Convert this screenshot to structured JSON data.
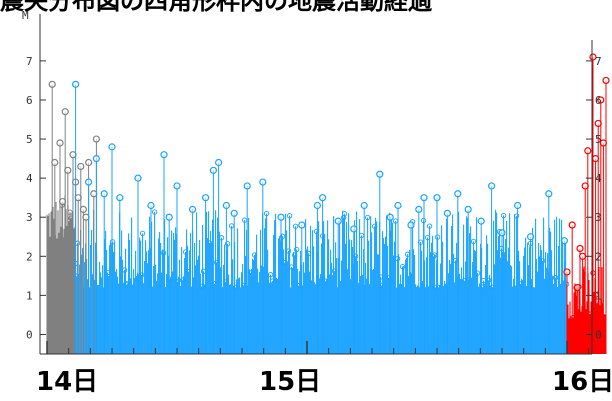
{
  "chart_data": {
    "type": "scatter",
    "title": "震央分布図の四角形枠内の地震活動経過",
    "ylabel": "M",
    "ylim": [
      -0.5,
      8.2
    ],
    "yticks": [
      0,
      1,
      2,
      3,
      4,
      5,
      6,
      7
    ],
    "xlim": [
      0,
      2.15
    ],
    "xlabels": [
      "14日",
      "15日",
      "16日"
    ],
    "xlabel_positions": [
      0,
      1,
      2
    ],
    "colors": {
      "before": "#808080",
      "main": "#1aa3ff",
      "after": "#ff0000"
    },
    "series": [
      {
        "color_key": "before",
        "x": [
          0.02,
          0.03,
          0.05,
          0.06,
          0.07,
          0.08,
          0.1,
          0.11,
          0.12,
          0.13,
          0.14,
          0.15,
          0.16,
          0.18,
          0.19
        ],
        "y": [
          6.4,
          4.4,
          4.9,
          3.4,
          5.7,
          4.2,
          4.6,
          3.9,
          3.5,
          4.3,
          3.2,
          3.0,
          4.4,
          3.6,
          5.0
        ]
      },
      {
        "color_key": "main",
        "x": [
          0.11,
          0.16,
          0.19,
          0.22,
          0.25,
          0.28,
          0.35,
          0.4,
          0.45,
          0.47,
          0.5,
          0.56,
          0.61,
          0.64,
          0.66,
          0.69,
          0.72,
          0.77,
          0.83,
          0.9,
          0.98,
          1.04,
          1.06,
          1.12,
          1.18,
          1.22,
          1.28,
          1.32,
          1.35,
          1.4,
          1.43,
          1.45,
          1.5,
          1.54,
          1.58,
          1.62,
          1.67,
          1.71,
          1.75,
          1.81,
          1.86,
          1.93,
          1.99
        ],
        "y": [
          6.4,
          3.9,
          4.5,
          3.6,
          4.8,
          3.5,
          4.0,
          3.3,
          4.6,
          3.0,
          3.8,
          3.2,
          3.5,
          4.2,
          4.4,
          3.3,
          3.1,
          3.8,
          3.9,
          3.0,
          2.8,
          3.3,
          3.5,
          2.9,
          2.7,
          3.3,
          4.1,
          3.0,
          3.3,
          2.8,
          3.2,
          3.5,
          3.5,
          3.1,
          3.6,
          3.2,
          2.9,
          3.8,
          2.6,
          3.3,
          2.5,
          3.6,
          2.4
        ]
      },
      {
        "color_key": "after",
        "x": [
          2.0,
          2.02,
          2.04,
          2.05,
          2.06,
          2.07,
          2.08,
          2.1,
          2.11,
          2.12,
          2.13,
          2.14,
          2.15
        ],
        "y": [
          1.6,
          2.8,
          1.2,
          2.2,
          2.0,
          3.8,
          4.7,
          7.1,
          4.5,
          5.4,
          6.0,
          4.9,
          6.5
        ]
      }
    ]
  }
}
